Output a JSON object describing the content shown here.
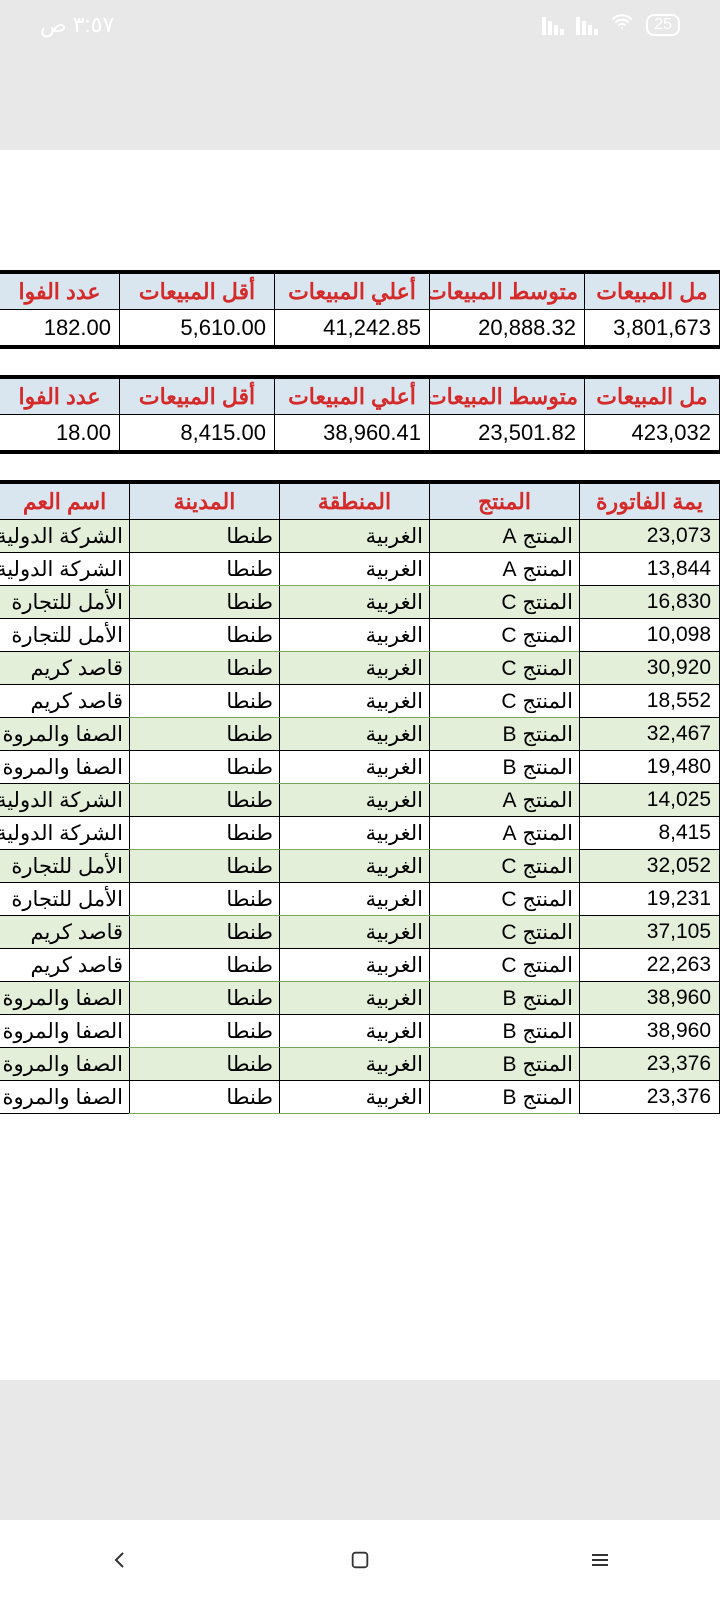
{
  "status": {
    "battery": "25",
    "time": "٣:٥٧ ص"
  },
  "summary1": {
    "headers": {
      "total": "مل المبيعات",
      "avg": "متوسط المبيعات",
      "max": "أعلي المبيعات",
      "min": "أقل المبيعات",
      "count": "عدد الفوا"
    },
    "row": {
      "total": "3,801,673",
      "avg": "20,888.32",
      "max": "41,242.85",
      "min": "5,610.00",
      "count": "182.00"
    }
  },
  "summary2": {
    "headers": {
      "total": "مل المبيعات",
      "avg": "متوسط المبيعات",
      "max": "أعلي المبيعات",
      "min": "أقل المبيعات",
      "count": "عدد الفوا"
    },
    "row": {
      "total": "423,032",
      "avg": "23,501.82",
      "max": "38,960.41",
      "min": "8,415.00",
      "count": "18.00"
    }
  },
  "detail": {
    "headers": {
      "value": "يمة الفاتورة",
      "product": "المنتج",
      "region": "المنطقة",
      "city": "المدينة",
      "customer": "اسم العم"
    },
    "rows": [
      {
        "v": "23,073",
        "p": "المنتج A",
        "r": "الغربية",
        "c": "طنطا",
        "cu": "الشركة الدولية"
      },
      {
        "v": "13,844",
        "p": "المنتج A",
        "r": "الغربية",
        "c": "طنطا",
        "cu": "الشركة الدولية"
      },
      {
        "v": "16,830",
        "p": "المنتج C",
        "r": "الغربية",
        "c": "طنطا",
        "cu": "الأمل للتجارة"
      },
      {
        "v": "10,098",
        "p": "المنتج C",
        "r": "الغربية",
        "c": "طنطا",
        "cu": "الأمل للتجارة"
      },
      {
        "v": "30,920",
        "p": "المنتج C",
        "r": "الغربية",
        "c": "طنطا",
        "cu": "قاصد كريم"
      },
      {
        "v": "18,552",
        "p": "المنتج C",
        "r": "الغربية",
        "c": "طنطا",
        "cu": "قاصد كريم"
      },
      {
        "v": "32,467",
        "p": "المنتج B",
        "r": "الغربية",
        "c": "طنطا",
        "cu": "الصفا والمروة"
      },
      {
        "v": "19,480",
        "p": "المنتج B",
        "r": "الغربية",
        "c": "طنطا",
        "cu": "الصفا والمروة"
      },
      {
        "v": "14,025",
        "p": "المنتج A",
        "r": "الغربية",
        "c": "طنطا",
        "cu": "الشركة الدولية"
      },
      {
        "v": "8,415",
        "p": "المنتج A",
        "r": "الغربية",
        "c": "طنطا",
        "cu": "الشركة الدولية"
      },
      {
        "v": "32,052",
        "p": "المنتج C",
        "r": "الغربية",
        "c": "طنطا",
        "cu": "الأمل للتجارة"
      },
      {
        "v": "19,231",
        "p": "المنتج C",
        "r": "الغربية",
        "c": "طنطا",
        "cu": "الأمل للتجارة"
      },
      {
        "v": "37,105",
        "p": "المنتج C",
        "r": "الغربية",
        "c": "طنطا",
        "cu": "قاصد كريم"
      },
      {
        "v": "22,263",
        "p": "المنتج C",
        "r": "الغربية",
        "c": "طنطا",
        "cu": "قاصد كريم"
      },
      {
        "v": "38,960",
        "p": "المنتج B",
        "r": "الغربية",
        "c": "طنطا",
        "cu": "الصفا والمروة"
      },
      {
        "v": "38,960",
        "p": "المنتج B",
        "r": "الغربية",
        "c": "طنطا",
        "cu": "الصفا والمروة"
      },
      {
        "v": "23,376",
        "p": "المنتج B",
        "r": "الغربية",
        "c": "طنطا",
        "cu": "الصفا والمروة"
      },
      {
        "v": "23,376",
        "p": "المنتج B",
        "r": "الغربية",
        "c": "طنطا",
        "cu": "الصفا والمروة"
      }
    ]
  },
  "colors": {
    "header_bg": "#d9e6ef",
    "header_text": "#d42a2a",
    "alt_row": "#e4efda",
    "border": "#000000",
    "green_border": "#7aa85a"
  }
}
